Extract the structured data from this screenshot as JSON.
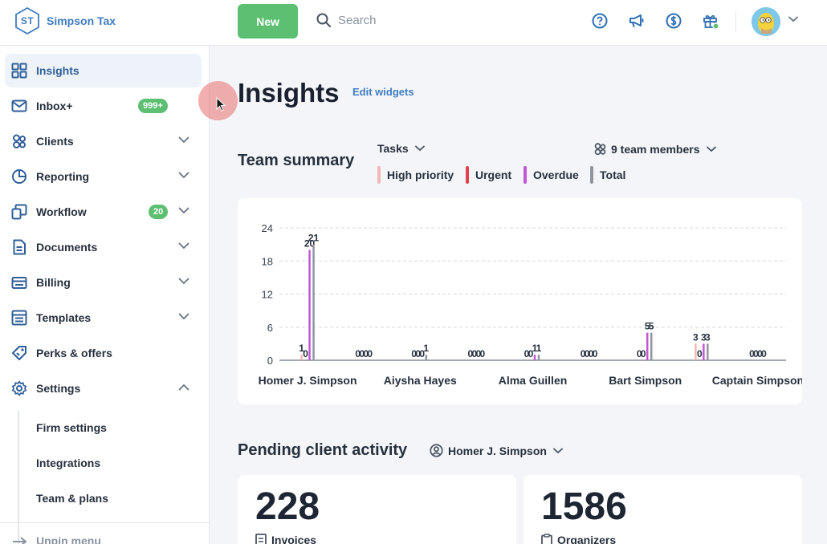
{
  "brand": {
    "initials": "ST",
    "name": "Simpson Tax"
  },
  "header": {
    "new_label": "New",
    "search_placeholder": "Search",
    "icons": [
      "help-icon",
      "megaphone-icon",
      "dollar-icon",
      "gift-icon"
    ]
  },
  "sidebar": {
    "items": [
      {
        "label": "Insights",
        "icon": "grid-icon"
      },
      {
        "label": "Inbox+",
        "icon": "mail-icon",
        "badge": "999+"
      },
      {
        "label": "Clients",
        "icon": "users-icon"
      },
      {
        "label": "Reporting",
        "icon": "pie-chart-icon"
      },
      {
        "label": "Workflow",
        "icon": "workflow-icon",
        "badge": "20"
      },
      {
        "label": "Documents",
        "icon": "document-icon"
      },
      {
        "label": "Billing",
        "icon": "billing-icon"
      },
      {
        "label": "Templates",
        "icon": "template-icon"
      },
      {
        "label": "Perks & offers",
        "icon": "tag-icon"
      },
      {
        "label": "Settings",
        "icon": "gear-icon"
      }
    ],
    "settings_sub": [
      "Firm settings",
      "Integrations",
      "Team & plans"
    ],
    "unpin_label": "Unpin menu"
  },
  "main": {
    "title": "Insights",
    "edit_widgets": "Edit widgets",
    "team_summary": {
      "title": "Team summary",
      "filter": "Tasks",
      "members": "9 team members",
      "legend": [
        {
          "label": "High priority",
          "color": "#f2b8b5"
        },
        {
          "label": "Urgent",
          "color": "#e0434f"
        },
        {
          "label": "Overdue",
          "color": "#c157d6"
        },
        {
          "label": "Total",
          "color": "#8f969f"
        }
      ]
    },
    "pending": {
      "title": "Pending client activity",
      "member": "Homer J. Simpson",
      "cards": [
        {
          "value": "228",
          "label": "Invoices"
        },
        {
          "value": "1586",
          "label": "Organizers"
        }
      ]
    }
  },
  "chart_data": {
    "type": "bar",
    "ylim": [
      0,
      24
    ],
    "yticks": [
      0,
      6,
      12,
      18,
      24
    ],
    "grid": true,
    "series_names": [
      "High priority",
      "Urgent",
      "Overdue",
      "Total"
    ],
    "colors": [
      "#f2b8b5",
      "#e0434f",
      "#c157d6",
      "#8f969f"
    ],
    "labeled_categories": [
      "Homer J. Simpson",
      "Aiysha Hayes",
      "Alma Guillen",
      "Bart Simpson",
      "Captain Simpson"
    ],
    "groups": [
      {
        "name": "Homer J. Simpson",
        "values": [
          1,
          0,
          20,
          21
        ]
      },
      {
        "name": "",
        "values": [
          0,
          0,
          0,
          0
        ]
      },
      {
        "name": "Aiysha Hayes",
        "values": [
          0,
          0,
          0,
          1
        ]
      },
      {
        "name": "",
        "values": [
          0,
          0,
          0,
          0
        ]
      },
      {
        "name": "Alma Guillen",
        "values": [
          0,
          0,
          1,
          1
        ]
      },
      {
        "name": "",
        "values": [
          0,
          0,
          0,
          0
        ]
      },
      {
        "name": "Bart Simpson",
        "values": [
          0,
          0,
          5,
          5
        ]
      },
      {
        "name": "",
        "values": [
          3,
          0,
          3,
          3
        ]
      },
      {
        "name": "Captain Simpson",
        "values": [
          0,
          0,
          0,
          0
        ]
      }
    ]
  }
}
